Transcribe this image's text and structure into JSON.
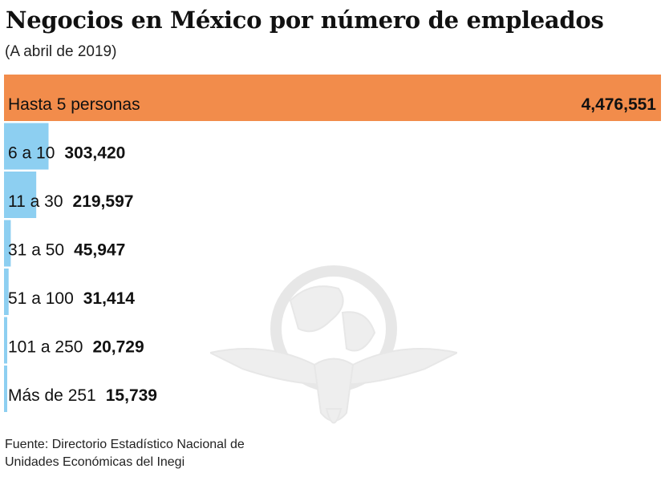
{
  "header": {
    "title": "Negocios en México por número de empleados",
    "subtitle": "(A abril de 2019)"
  },
  "footer": {
    "source_line_1": "Fuente: Directorio Estadístico Nacional de",
    "source_line_2": "Unidades Económicas del Inegi"
  },
  "watermark": {
    "icon": "eagle-globe-icon"
  },
  "chart_data": {
    "type": "bar",
    "orientation": "horizontal",
    "title": "Negocios en México por número de empleados",
    "subtitle": "(A abril de 2019)",
    "xlabel": "",
    "ylabel": "",
    "grid": false,
    "xlim": [
      0,
      4476551
    ],
    "categories": [
      "Hasta 5 personas",
      "6 a 10",
      "11 a 30",
      "31 a 50",
      "51 a 100",
      "101 a 250",
      "Más de 251"
    ],
    "values": [
      4476551,
      303420,
      219597,
      45947,
      31414,
      20729,
      15739
    ],
    "value_labels": [
      "4,476,551",
      "303,420",
      "219,597",
      "45,947",
      "31,414",
      "20,729",
      "15,739"
    ],
    "colors": {
      "highlight": "#F28C4B",
      "default": "#8DCFF1"
    },
    "highlight_index": 0
  }
}
